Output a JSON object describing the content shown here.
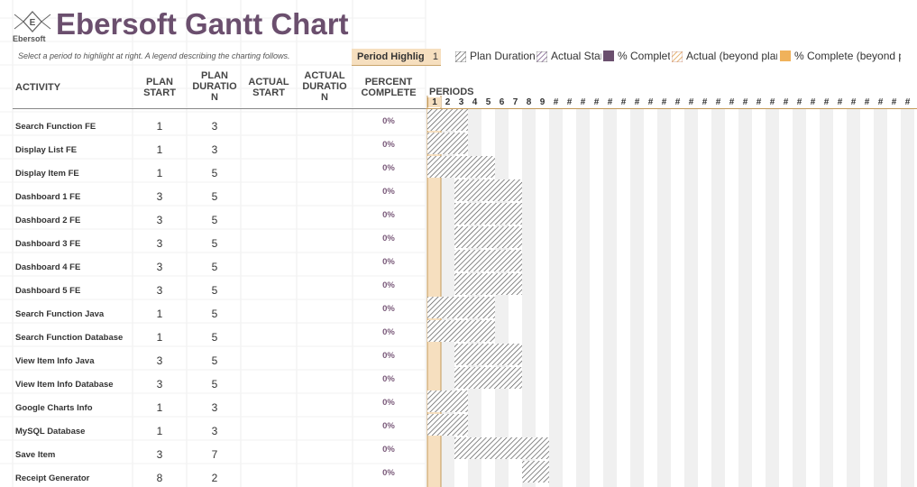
{
  "app": {
    "title": "Ebersoft Gantt Chart",
    "logo_letter": "E",
    "logo_text": "Ebersoft",
    "subtitle": "Select a period to highlight at right.  A legend describing the charting follows."
  },
  "period_highlight": {
    "label": "Period Highlight",
    "value": "1"
  },
  "legend": [
    {
      "label": "Plan Duration",
      "pattern": "light-hatch"
    },
    {
      "label": "Actual Start",
      "pattern": "purple-hatch"
    },
    {
      "label": "% Complete",
      "pattern": "purple-solid"
    },
    {
      "label": "Actual (beyond plan)",
      "pattern": "orange-hatch"
    },
    {
      "label": "% Complete (beyond plan)",
      "pattern": "orange-solid"
    }
  ],
  "columns": {
    "activity": "ACTIVITY",
    "plan_start": [
      "PLAN",
      "START"
    ],
    "plan_duration": [
      "PLAN",
      "DURATIO",
      "N"
    ],
    "actual_start": [
      "ACTUAL",
      "START"
    ],
    "actual_duration": [
      "ACTUAL",
      "DURATIO",
      "N"
    ],
    "percent_complete": [
      "PERCENT",
      "COMPLETE"
    ],
    "periods": "PERIODS"
  },
  "periods": [
    "1",
    "2",
    "3",
    "4",
    "5",
    "6",
    "7",
    "8",
    "9",
    "#",
    "#",
    "#",
    "#",
    "#",
    "#",
    "#",
    "#",
    "#",
    "#",
    "#",
    "#",
    "#",
    "#",
    "#",
    "#",
    "#",
    "#",
    "#",
    "#",
    "#",
    "#",
    "#",
    "#",
    "#",
    "#",
    "#"
  ],
  "highlight_period": 1,
  "colors": {
    "title": "#6b4f6e",
    "highlight": "#f6dfbf",
    "stripe": "#f0f0f0",
    "hatch": "#555555",
    "pct_text": "#7a5a7a"
  },
  "activities": [
    {
      "name": "Search Function FE",
      "plan_start": 1,
      "plan_duration": 3,
      "actual_start": "",
      "actual_duration": "",
      "percent": "0%"
    },
    {
      "name": "Display List FE",
      "plan_start": 1,
      "plan_duration": 3,
      "actual_start": "",
      "actual_duration": "",
      "percent": "0%"
    },
    {
      "name": "Display Item FE",
      "plan_start": 1,
      "plan_duration": 5,
      "actual_start": "",
      "actual_duration": "",
      "percent": "0%"
    },
    {
      "name": "Dashboard 1 FE",
      "plan_start": 3,
      "plan_duration": 5,
      "actual_start": "",
      "actual_duration": "",
      "percent": "0%"
    },
    {
      "name": "Dashboard 2 FE",
      "plan_start": 3,
      "plan_duration": 5,
      "actual_start": "",
      "actual_duration": "",
      "percent": "0%"
    },
    {
      "name": "Dashboard 3 FE",
      "plan_start": 3,
      "plan_duration": 5,
      "actual_start": "",
      "actual_duration": "",
      "percent": "0%"
    },
    {
      "name": "Dashboard 4 FE",
      "plan_start": 3,
      "plan_duration": 5,
      "actual_start": "",
      "actual_duration": "",
      "percent": "0%"
    },
    {
      "name": "Dashboard 5 FE",
      "plan_start": 3,
      "plan_duration": 5,
      "actual_start": "",
      "actual_duration": "",
      "percent": "0%"
    },
    {
      "name": "Search Function Java",
      "plan_start": 1,
      "plan_duration": 5,
      "actual_start": "",
      "actual_duration": "",
      "percent": "0%"
    },
    {
      "name": "Search Function Database",
      "plan_start": 1,
      "plan_duration": 5,
      "actual_start": "",
      "actual_duration": "",
      "percent": "0%"
    },
    {
      "name": "View Item Info Java",
      "plan_start": 3,
      "plan_duration": 5,
      "actual_start": "",
      "actual_duration": "",
      "percent": "0%"
    },
    {
      "name": "View Item Info Database",
      "plan_start": 3,
      "plan_duration": 5,
      "actual_start": "",
      "actual_duration": "",
      "percent": "0%"
    },
    {
      "name": "Google Charts Info",
      "plan_start": 1,
      "plan_duration": 3,
      "actual_start": "",
      "actual_duration": "",
      "percent": "0%"
    },
    {
      "name": "MySQL Database",
      "plan_start": 1,
      "plan_duration": 3,
      "actual_start": "",
      "actual_duration": "",
      "percent": "0%"
    },
    {
      "name": "Save Item",
      "plan_start": 3,
      "plan_duration": 7,
      "actual_start": "",
      "actual_duration": "",
      "percent": "0%"
    },
    {
      "name": "Receipt Generator",
      "plan_start": 8,
      "plan_duration": 2,
      "actual_start": "",
      "actual_duration": "",
      "percent": "0%"
    }
  ]
}
